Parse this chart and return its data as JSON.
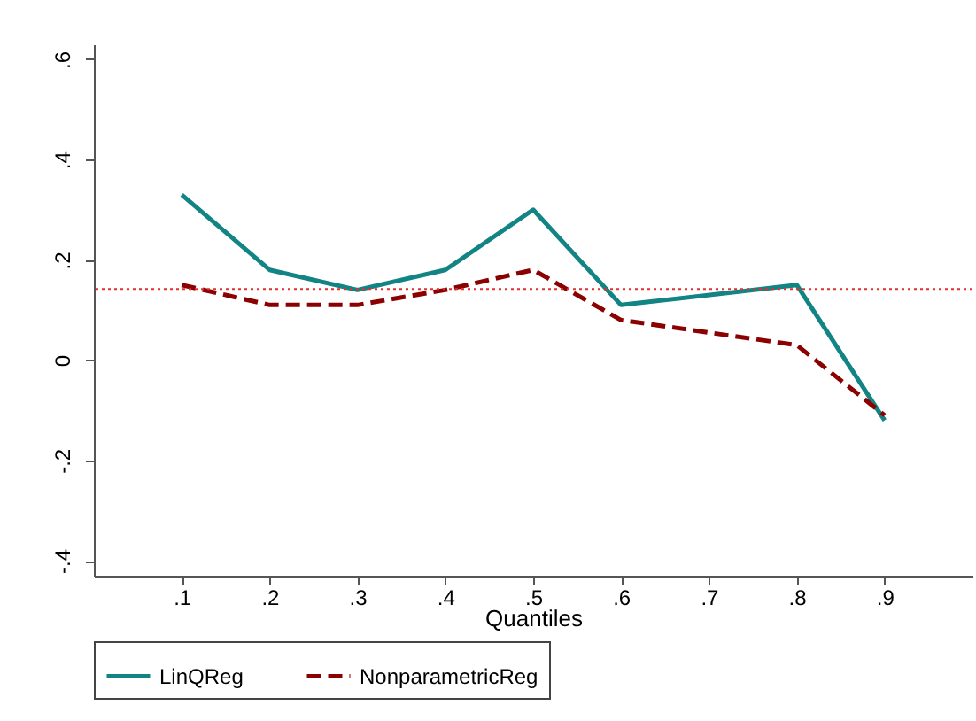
{
  "chart_data": {
    "type": "line",
    "xlabel": "Quantiles",
    "xlim": [
      0,
      1
    ],
    "xticks": [
      {
        "value": 0.1,
        "label": ".1"
      },
      {
        "value": 0.2,
        "label": ".2"
      },
      {
        "value": 0.3,
        "label": ".3"
      },
      {
        "value": 0.4,
        "label": ".4"
      },
      {
        "value": 0.5,
        "label": ".5"
      },
      {
        "value": 0.6,
        "label": ".6"
      },
      {
        "value": 0.7,
        "label": ".7"
      },
      {
        "value": 0.8,
        "label": ".8"
      },
      {
        "value": 0.9,
        "label": ".9"
      }
    ],
    "ylim": [
      -0.43,
      0.63
    ],
    "yticks": [
      {
        "value": -0.4,
        "label": "-.4"
      },
      {
        "value": -0.2,
        "label": "-.2"
      },
      0,
      {
        "value": 0.2,
        "label": ".2"
      },
      {
        "value": 0.4,
        "label": ".4"
      },
      {
        "value": 0.6,
        "label": ".6"
      }
    ],
    "series": [
      {
        "name": "LinQReg",
        "color": "#138484",
        "line_style": "solid",
        "x": [
          0.1,
          0.2,
          0.3,
          0.4,
          0.5,
          0.6,
          0.8,
          0.9
        ],
        "values": [
          0.33,
          0.18,
          0.14,
          0.18,
          0.3,
          0.11,
          0.15,
          -0.12
        ]
      },
      {
        "name": "NonparametricReg",
        "color": "#8b0000",
        "line_style": "dashed",
        "x": [
          0.1,
          0.2,
          0.3,
          0.4,
          0.5,
          0.6,
          0.8,
          0.9
        ],
        "values": [
          0.15,
          0.11,
          0.11,
          0.14,
          0.18,
          0.08,
          0.03,
          -0.11
        ]
      }
    ],
    "ref_lines": [
      {
        "axis": "y",
        "value": 0.142,
        "color": "#e03030",
        "line_style": "dotted"
      }
    ],
    "grid": false,
    "legend": "bottom",
    "marker": "none"
  }
}
